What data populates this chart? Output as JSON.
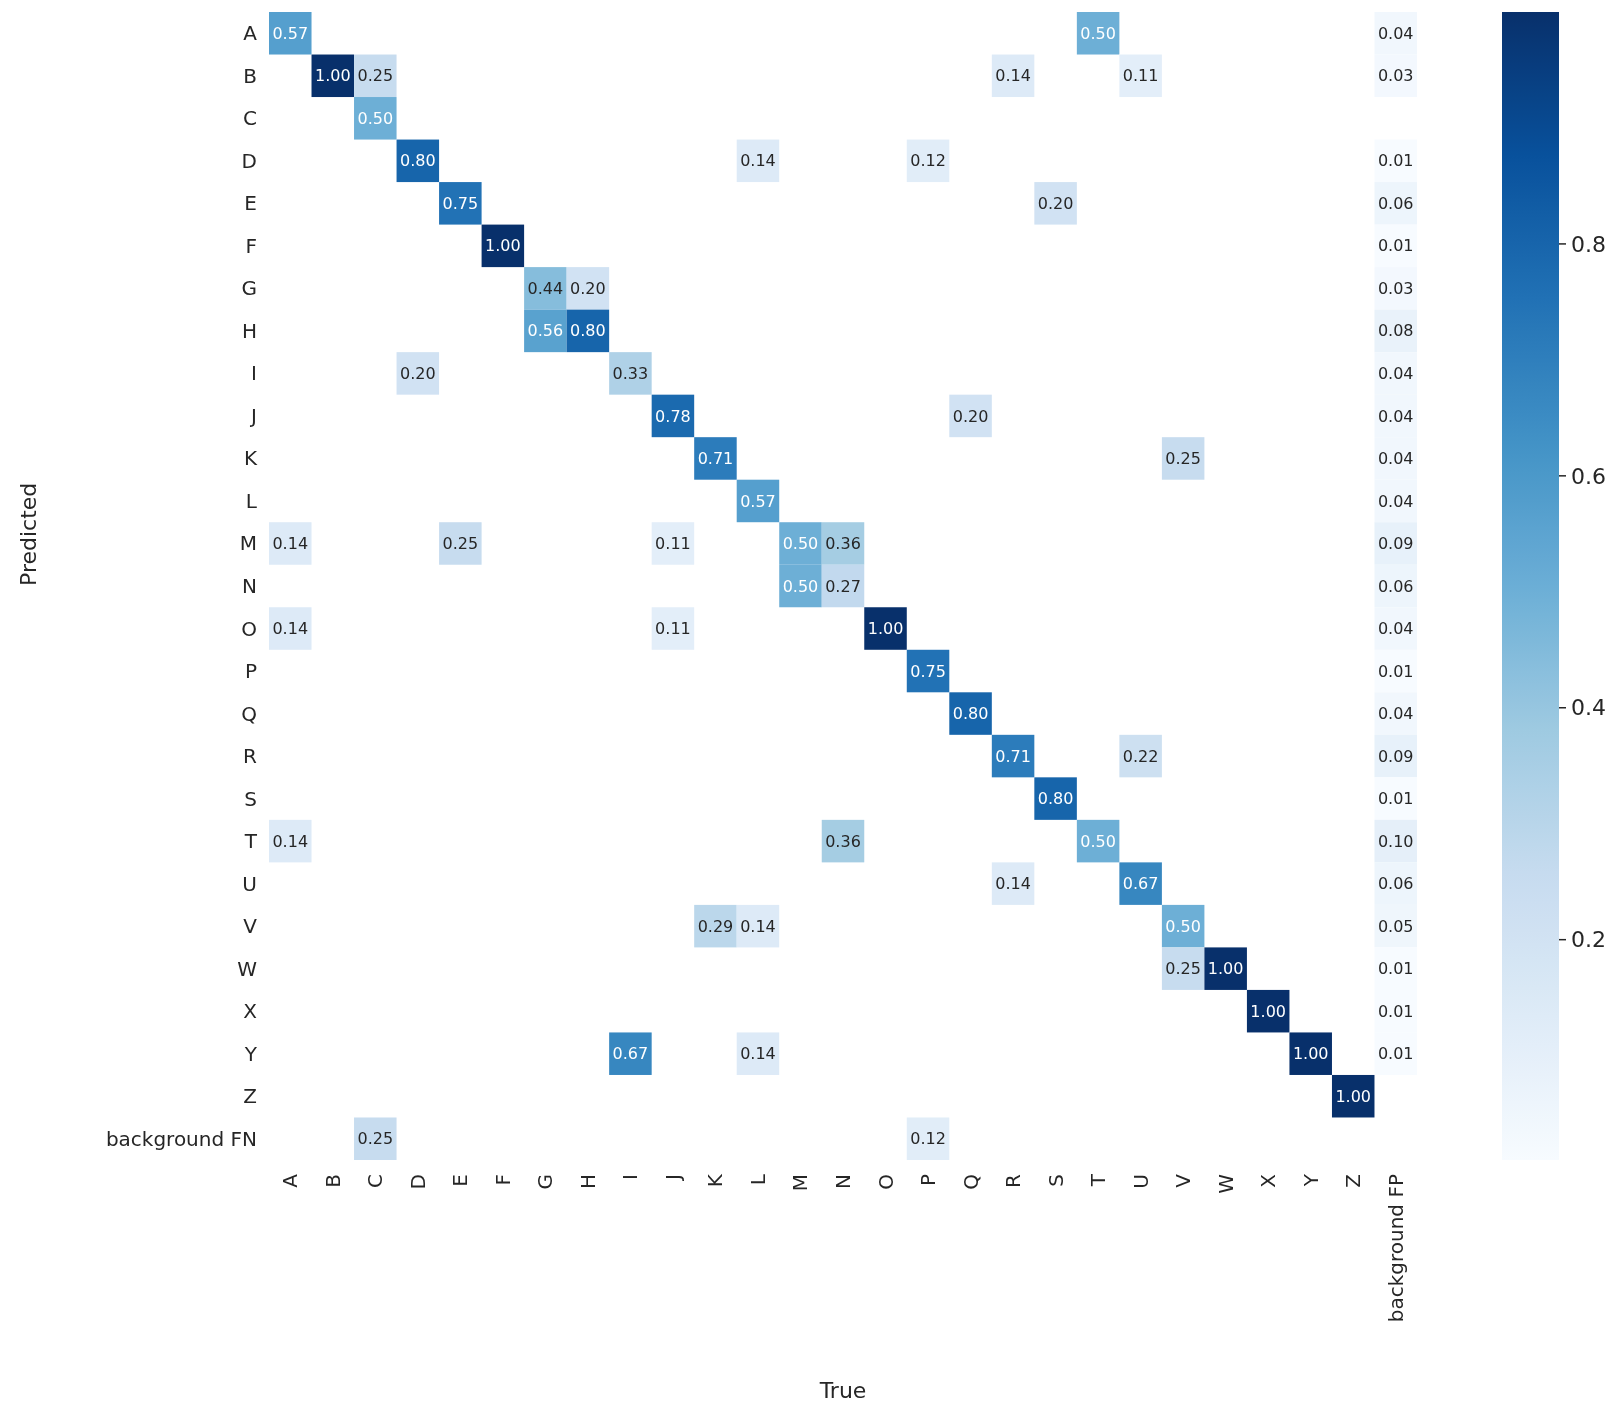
{
  "chart_data": {
    "type": "heatmap",
    "xlabel": "True",
    "ylabel": "Predicted",
    "categories": [
      "A",
      "B",
      "C",
      "D",
      "E",
      "F",
      "G",
      "H",
      "I",
      "J",
      "K",
      "L",
      "M",
      "N",
      "O",
      "P",
      "Q",
      "R",
      "S",
      "T",
      "U",
      "V",
      "W",
      "X",
      "Y",
      "Z",
      "background FP"
    ],
    "y_categories": [
      "A",
      "B",
      "C",
      "D",
      "E",
      "F",
      "G",
      "H",
      "I",
      "J",
      "K",
      "L",
      "M",
      "N",
      "O",
      "P",
      "Q",
      "R",
      "S",
      "T",
      "U",
      "V",
      "W",
      "X",
      "Y",
      "Z",
      "background FN"
    ],
    "cells": [
      [
        0.57,
        null,
        null,
        null,
        null,
        null,
        null,
        null,
        null,
        null,
        null,
        null,
        null,
        null,
        null,
        null,
        null,
        null,
        null,
        0.5,
        null,
        null,
        null,
        null,
        null,
        null,
        0.04
      ],
      [
        null,
        1.0,
        0.25,
        null,
        null,
        null,
        null,
        null,
        null,
        null,
        null,
        null,
        null,
        null,
        null,
        null,
        null,
        0.14,
        null,
        null,
        0.11,
        null,
        null,
        null,
        null,
        null,
        0.03
      ],
      [
        null,
        null,
        0.5,
        null,
        null,
        null,
        null,
        null,
        null,
        null,
        null,
        null,
        null,
        null,
        null,
        null,
        null,
        null,
        null,
        null,
        null,
        null,
        null,
        null,
        null,
        null,
        null
      ],
      [
        null,
        null,
        null,
        0.8,
        null,
        null,
        null,
        null,
        null,
        null,
        null,
        0.14,
        null,
        null,
        null,
        0.12,
        null,
        null,
        null,
        null,
        null,
        null,
        null,
        null,
        null,
        null,
        0.01
      ],
      [
        null,
        null,
        null,
        null,
        0.75,
        null,
        null,
        null,
        null,
        null,
        null,
        null,
        null,
        null,
        null,
        null,
        null,
        null,
        0.2,
        null,
        null,
        null,
        null,
        null,
        null,
        null,
        0.06
      ],
      [
        null,
        null,
        null,
        null,
        null,
        1.0,
        null,
        null,
        null,
        null,
        null,
        null,
        null,
        null,
        null,
        null,
        null,
        null,
        null,
        null,
        null,
        null,
        null,
        null,
        null,
        null,
        0.01
      ],
      [
        null,
        null,
        null,
        null,
        null,
        null,
        0.44,
        0.2,
        null,
        null,
        null,
        null,
        null,
        null,
        null,
        null,
        null,
        null,
        null,
        null,
        null,
        null,
        null,
        null,
        null,
        null,
        0.03
      ],
      [
        null,
        null,
        null,
        null,
        null,
        null,
        0.56,
        0.8,
        null,
        null,
        null,
        null,
        null,
        null,
        null,
        null,
        null,
        null,
        null,
        null,
        null,
        null,
        null,
        null,
        null,
        null,
        0.08
      ],
      [
        null,
        null,
        null,
        0.2,
        null,
        null,
        null,
        null,
        0.33,
        null,
        null,
        null,
        null,
        null,
        null,
        null,
        null,
        null,
        null,
        null,
        null,
        null,
        null,
        null,
        null,
        null,
        0.04
      ],
      [
        null,
        null,
        null,
        null,
        null,
        null,
        null,
        null,
        null,
        0.78,
        null,
        null,
        null,
        null,
        null,
        null,
        0.2,
        null,
        null,
        null,
        null,
        null,
        null,
        null,
        null,
        null,
        0.04
      ],
      [
        null,
        null,
        null,
        null,
        null,
        null,
        null,
        null,
        null,
        null,
        0.71,
        null,
        null,
        null,
        null,
        null,
        null,
        null,
        null,
        null,
        null,
        0.25,
        null,
        null,
        null,
        null,
        0.04
      ],
      [
        null,
        null,
        null,
        null,
        null,
        null,
        null,
        null,
        null,
        null,
        null,
        0.57,
        null,
        null,
        null,
        null,
        null,
        null,
        null,
        null,
        null,
        null,
        null,
        null,
        null,
        null,
        0.04
      ],
      [
        0.14,
        null,
        null,
        null,
        0.25,
        null,
        null,
        null,
        null,
        0.11,
        null,
        null,
        0.5,
        0.36,
        null,
        null,
        null,
        null,
        null,
        null,
        null,
        null,
        null,
        null,
        null,
        null,
        0.09
      ],
      [
        null,
        null,
        null,
        null,
        null,
        null,
        null,
        null,
        null,
        null,
        null,
        null,
        0.5,
        0.27,
        null,
        null,
        null,
        null,
        null,
        null,
        null,
        null,
        null,
        null,
        null,
        null,
        0.06
      ],
      [
        0.14,
        null,
        null,
        null,
        null,
        null,
        null,
        null,
        null,
        0.11,
        null,
        null,
        null,
        null,
        1.0,
        null,
        null,
        null,
        null,
        null,
        null,
        null,
        null,
        null,
        null,
        null,
        0.04
      ],
      [
        null,
        null,
        null,
        null,
        null,
        null,
        null,
        null,
        null,
        null,
        null,
        null,
        null,
        null,
        null,
        0.75,
        null,
        null,
        null,
        null,
        null,
        null,
        null,
        null,
        null,
        null,
        0.01
      ],
      [
        null,
        null,
        null,
        null,
        null,
        null,
        null,
        null,
        null,
        null,
        null,
        null,
        null,
        null,
        null,
        null,
        0.8,
        null,
        null,
        null,
        null,
        null,
        null,
        null,
        null,
        null,
        0.04
      ],
      [
        null,
        null,
        null,
        null,
        null,
        null,
        null,
        null,
        null,
        null,
        null,
        null,
        null,
        null,
        null,
        null,
        null,
        0.71,
        null,
        null,
        0.22,
        null,
        null,
        null,
        null,
        null,
        0.09
      ],
      [
        null,
        null,
        null,
        null,
        null,
        null,
        null,
        null,
        null,
        null,
        null,
        null,
        null,
        null,
        null,
        null,
        null,
        null,
        0.8,
        null,
        null,
        null,
        null,
        null,
        null,
        null,
        0.01
      ],
      [
        0.14,
        null,
        null,
        null,
        null,
        null,
        null,
        null,
        null,
        null,
        null,
        null,
        null,
        0.36,
        null,
        null,
        null,
        null,
        null,
        0.5,
        null,
        null,
        null,
        null,
        null,
        null,
        0.1
      ],
      [
        null,
        null,
        null,
        null,
        null,
        null,
        null,
        null,
        null,
        null,
        null,
        null,
        null,
        null,
        null,
        null,
        null,
        0.14,
        null,
        null,
        0.67,
        null,
        null,
        null,
        null,
        null,
        0.06
      ],
      [
        null,
        null,
        null,
        null,
        null,
        null,
        null,
        null,
        null,
        null,
        0.29,
        0.14,
        null,
        null,
        null,
        null,
        null,
        null,
        null,
        null,
        null,
        0.5,
        null,
        null,
        null,
        null,
        0.05
      ],
      [
        null,
        null,
        null,
        null,
        null,
        null,
        null,
        null,
        null,
        null,
        null,
        null,
        null,
        null,
        null,
        null,
        null,
        null,
        null,
        null,
        null,
        0.25,
        1.0,
        null,
        null,
        null,
        0.01
      ],
      [
        null,
        null,
        null,
        null,
        null,
        null,
        null,
        null,
        null,
        null,
        null,
        null,
        null,
        null,
        null,
        null,
        null,
        null,
        null,
        null,
        null,
        null,
        null,
        1.0,
        null,
        null,
        0.01
      ],
      [
        null,
        null,
        null,
        null,
        null,
        null,
        null,
        null,
        0.67,
        null,
        null,
        0.14,
        null,
        null,
        null,
        null,
        null,
        null,
        null,
        null,
        null,
        null,
        null,
        null,
        1.0,
        null,
        0.01
      ],
      [
        null,
        null,
        null,
        null,
        null,
        null,
        null,
        null,
        null,
        null,
        null,
        null,
        null,
        null,
        null,
        null,
        null,
        null,
        null,
        null,
        null,
        null,
        null,
        null,
        null,
        1.0,
        null
      ],
      [
        null,
        null,
        0.25,
        null,
        null,
        null,
        null,
        null,
        null,
        null,
        null,
        null,
        null,
        null,
        null,
        0.12,
        null,
        null,
        null,
        null,
        null,
        null,
        null,
        null,
        null,
        null,
        null
      ]
    ],
    "cell_labels": [
      [
        "0.57",
        null,
        null,
        null,
        null,
        null,
        null,
        null,
        null,
        null,
        null,
        null,
        null,
        null,
        null,
        null,
        null,
        null,
        null,
        "0.50",
        null,
        null,
        null,
        null,
        null,
        null,
        "0.04"
      ],
      [
        null,
        "1.00",
        "0.25",
        null,
        null,
        null,
        null,
        null,
        null,
        null,
        null,
        null,
        null,
        null,
        null,
        null,
        null,
        "0.14",
        null,
        null,
        "0.11",
        null,
        null,
        null,
        null,
        null,
        "0.03"
      ],
      [
        null,
        null,
        "0.50",
        null,
        null,
        null,
        null,
        null,
        null,
        null,
        null,
        null,
        null,
        null,
        null,
        null,
        null,
        null,
        null,
        null,
        null,
        null,
        null,
        null,
        null,
        null,
        null
      ],
      [
        null,
        null,
        null,
        "0.80",
        null,
        null,
        null,
        null,
        null,
        null,
        null,
        "0.14",
        null,
        null,
        null,
        "0.12",
        null,
        null,
        null,
        null,
        null,
        null,
        null,
        null,
        null,
        null,
        "0.01"
      ],
      [
        null,
        null,
        null,
        null,
        "0.75",
        null,
        null,
        null,
        null,
        null,
        null,
        null,
        null,
        null,
        null,
        null,
        null,
        null,
        "0.20",
        null,
        null,
        null,
        null,
        null,
        null,
        null,
        "0.06"
      ],
      [
        null,
        null,
        null,
        null,
        null,
        "1.00",
        null,
        null,
        null,
        null,
        null,
        null,
        null,
        null,
        null,
        null,
        null,
        null,
        null,
        null,
        null,
        null,
        null,
        null,
        null,
        null,
        "0.01"
      ],
      [
        null,
        null,
        null,
        null,
        null,
        null,
        "0.44",
        "0.20",
        null,
        null,
        null,
        null,
        null,
        null,
        null,
        null,
        null,
        null,
        null,
        null,
        null,
        null,
        null,
        null,
        null,
        null,
        "0.03"
      ],
      [
        null,
        null,
        null,
        null,
        null,
        null,
        "0.56",
        "0.80",
        null,
        null,
        null,
        null,
        null,
        null,
        null,
        null,
        null,
        null,
        null,
        null,
        null,
        null,
        null,
        null,
        null,
        null,
        "0.08"
      ],
      [
        null,
        null,
        null,
        "0.20",
        null,
        null,
        null,
        null,
        "0.33",
        null,
        null,
        null,
        null,
        null,
        null,
        null,
        null,
        null,
        null,
        null,
        null,
        null,
        null,
        null,
        null,
        null,
        "0.04"
      ],
      [
        null,
        null,
        null,
        null,
        null,
        null,
        null,
        null,
        null,
        "0.78",
        null,
        null,
        null,
        null,
        null,
        null,
        "0.20",
        null,
        null,
        null,
        null,
        null,
        null,
        null,
        null,
        null,
        "0.04"
      ],
      [
        null,
        null,
        null,
        null,
        null,
        null,
        null,
        null,
        null,
        null,
        "0.71",
        null,
        null,
        null,
        null,
        null,
        null,
        null,
        null,
        null,
        null,
        "0.25",
        null,
        null,
        null,
        null,
        "0.04"
      ],
      [
        null,
        null,
        null,
        null,
        null,
        null,
        null,
        null,
        null,
        null,
        null,
        "0.57",
        null,
        null,
        null,
        null,
        null,
        null,
        null,
        null,
        null,
        null,
        null,
        null,
        null,
        null,
        "0.04"
      ],
      [
        "0.14",
        null,
        null,
        null,
        "0.25",
        null,
        null,
        null,
        null,
        "0.11",
        null,
        null,
        "0.50",
        "0.36",
        null,
        null,
        null,
        null,
        null,
        null,
        null,
        null,
        null,
        null,
        null,
        null,
        "0.09"
      ],
      [
        null,
        null,
        null,
        null,
        null,
        null,
        null,
        null,
        null,
        null,
        null,
        null,
        "0.50",
        "0.27",
        null,
        null,
        null,
        null,
        null,
        null,
        null,
        null,
        null,
        null,
        null,
        null,
        "0.06"
      ],
      [
        "0.14",
        null,
        null,
        null,
        null,
        null,
        null,
        null,
        null,
        "0.11",
        null,
        null,
        null,
        null,
        "1.00",
        null,
        null,
        null,
        null,
        null,
        null,
        null,
        null,
        null,
        null,
        null,
        "0.04"
      ],
      [
        null,
        null,
        null,
        null,
        null,
        null,
        null,
        null,
        null,
        null,
        null,
        null,
        null,
        null,
        null,
        "0.75",
        null,
        null,
        null,
        null,
        null,
        null,
        null,
        null,
        null,
        null,
        "0.01"
      ],
      [
        null,
        null,
        null,
        null,
        null,
        null,
        null,
        null,
        null,
        null,
        null,
        null,
        null,
        null,
        null,
        null,
        "0.80",
        null,
        null,
        null,
        null,
        null,
        null,
        null,
        null,
        null,
        "0.04"
      ],
      [
        null,
        null,
        null,
        null,
        null,
        null,
        null,
        null,
        null,
        null,
        null,
        null,
        null,
        null,
        null,
        null,
        null,
        "0.71",
        null,
        null,
        "0.22",
        null,
        null,
        null,
        null,
        null,
        "0.09"
      ],
      [
        null,
        null,
        null,
        null,
        null,
        null,
        null,
        null,
        null,
        null,
        null,
        null,
        null,
        null,
        null,
        null,
        null,
        null,
        "0.80",
        null,
        null,
        null,
        null,
        null,
        null,
        null,
        "0.01"
      ],
      [
        "0.14",
        null,
        null,
        null,
        null,
        null,
        null,
        null,
        null,
        null,
        null,
        null,
        null,
        "0.36",
        null,
        null,
        null,
        null,
        null,
        "0.50",
        null,
        null,
        null,
        null,
        null,
        null,
        "0.10"
      ],
      [
        null,
        null,
        null,
        null,
        null,
        null,
        null,
        null,
        null,
        null,
        null,
        null,
        null,
        null,
        null,
        null,
        null,
        "0.14",
        null,
        null,
        "0.67",
        null,
        null,
        null,
        null,
        null,
        "0.06"
      ],
      [
        null,
        null,
        null,
        null,
        null,
        null,
        null,
        null,
        null,
        null,
        "0.29",
        "0.14",
        null,
        null,
        null,
        null,
        null,
        null,
        null,
        null,
        null,
        "0.50",
        null,
        null,
        null,
        null,
        "0.05"
      ],
      [
        null,
        null,
        null,
        null,
        null,
        null,
        null,
        null,
        null,
        null,
        null,
        null,
        null,
        null,
        null,
        null,
        null,
        null,
        null,
        null,
        null,
        "0.25",
        "1.00",
        null,
        null,
        null,
        "0.01"
      ],
      [
        null,
        null,
        null,
        null,
        null,
        null,
        null,
        null,
        null,
        null,
        null,
        null,
        null,
        null,
        null,
        null,
        null,
        null,
        null,
        null,
        null,
        null,
        null,
        "1.00",
        null,
        null,
        "0.01"
      ],
      [
        null,
        null,
        null,
        null,
        null,
        null,
        null,
        null,
        "0.67",
        null,
        null,
        "0.14",
        null,
        null,
        null,
        null,
        null,
        null,
        null,
        null,
        null,
        null,
        null,
        null,
        "1.00",
        null,
        "0.01"
      ],
      [
        null,
        null,
        null,
        null,
        null,
        null,
        null,
        null,
        null,
        null,
        null,
        null,
        null,
        null,
        null,
        null,
        null,
        null,
        null,
        null,
        null,
        null,
        null,
        null,
        null,
        "1.00",
        null
      ],
      [
        null,
        null,
        "0.25",
        null,
        null,
        null,
        null,
        null,
        null,
        null,
        null,
        null,
        null,
        null,
        null,
        "0.12",
        null,
        null,
        null,
        null,
        null,
        null,
        null,
        null,
        null,
        null,
        null
      ]
    ],
    "clim": [
      0.01,
      1
    ],
    "cticks": [
      0.2,
      0.4,
      0.6,
      0.8
    ]
  }
}
